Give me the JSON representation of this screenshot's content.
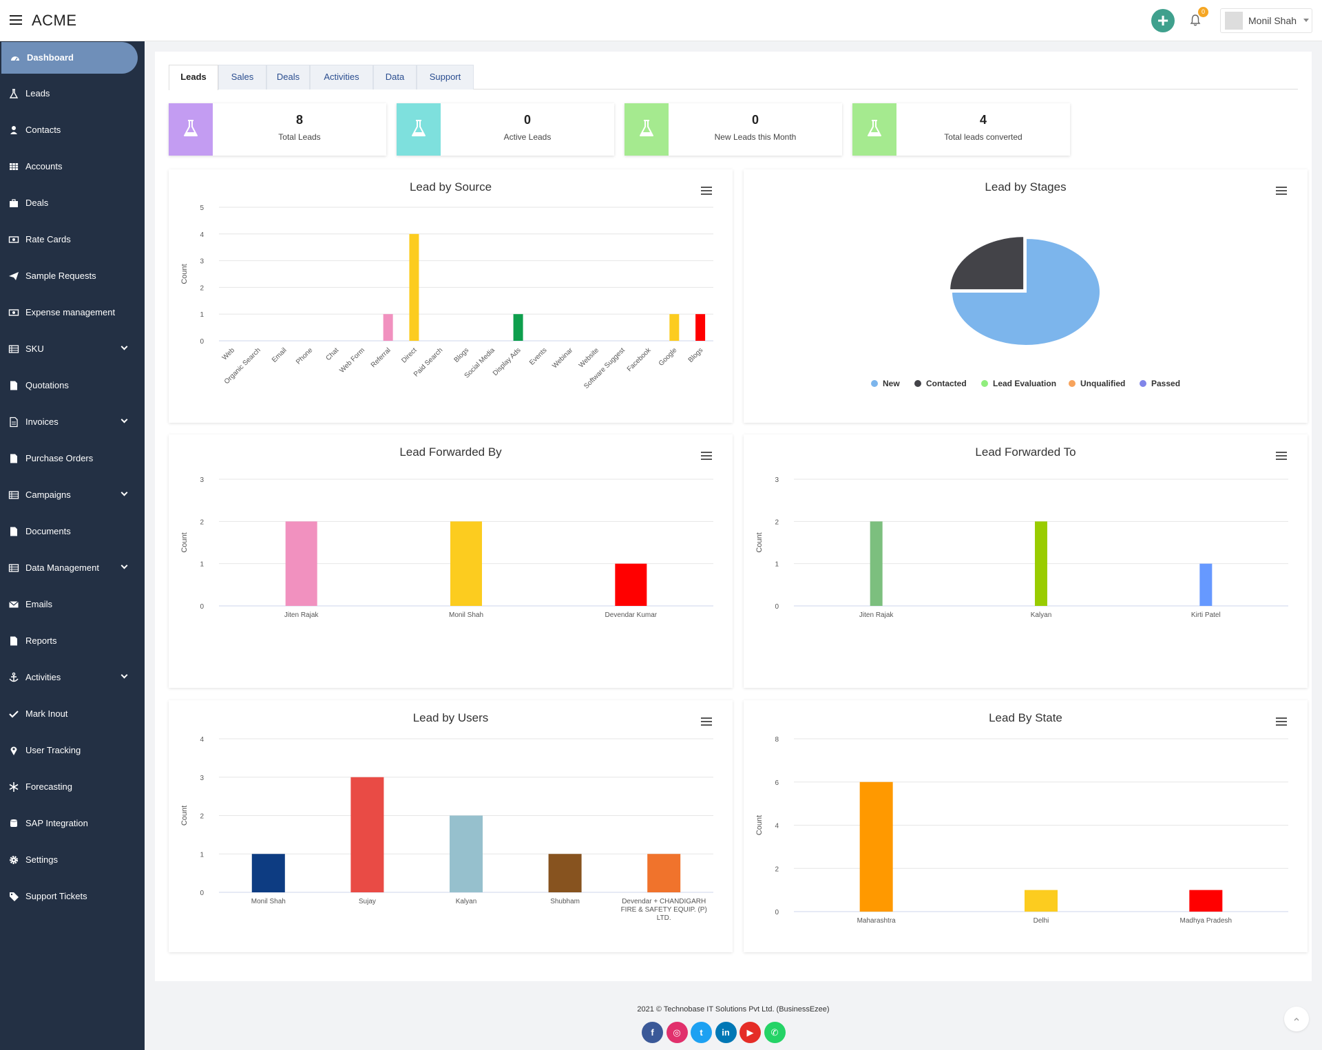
{
  "app": {
    "title": "ACME"
  },
  "user": {
    "name": "Monil Shah",
    "notifications": "0"
  },
  "sidebar": {
    "items": [
      {
        "label": "Dashboard",
        "icon": "dashboard-icon",
        "active": true
      },
      {
        "label": "Leads",
        "icon": "flask-icon"
      },
      {
        "label": "Contacts",
        "icon": "user-icon"
      },
      {
        "label": "Accounts",
        "icon": "grid-icon"
      },
      {
        "label": "Deals",
        "icon": "briefcase-icon"
      },
      {
        "label": "Rate Cards",
        "icon": "money-icon"
      },
      {
        "label": "Sample Requests",
        "icon": "send-icon"
      },
      {
        "label": "Expense management",
        "icon": "money-icon"
      },
      {
        "label": "SKU",
        "icon": "list-icon",
        "expandable": true
      },
      {
        "label": "Quotations",
        "icon": "file-icon"
      },
      {
        "label": "Invoices",
        "icon": "file-text-icon",
        "expandable": true
      },
      {
        "label": "Purchase Orders",
        "icon": "file-icon"
      },
      {
        "label": "Campaigns",
        "icon": "list-icon",
        "expandable": true
      },
      {
        "label": "Documents",
        "icon": "file-icon"
      },
      {
        "label": "Data Management",
        "icon": "list-icon",
        "expandable": true
      },
      {
        "label": "Emails",
        "icon": "envelope-icon"
      },
      {
        "label": "Reports",
        "icon": "file-icon"
      },
      {
        "label": "Activities",
        "icon": "anchor-icon",
        "expandable": true
      },
      {
        "label": "Mark Inout",
        "icon": "check-icon"
      },
      {
        "label": "User Tracking",
        "icon": "map-marker-icon"
      },
      {
        "label": "Forecasting",
        "icon": "snowflake-icon"
      },
      {
        "label": "SAP Integration",
        "icon": "database-icon"
      },
      {
        "label": "Settings",
        "icon": "gear-icon"
      },
      {
        "label": "Support Tickets",
        "icon": "tag-icon"
      }
    ]
  },
  "tabs": [
    "Leads",
    "Sales",
    "Deals",
    "Activities",
    "Data",
    "Support"
  ],
  "stats": [
    {
      "value": "8",
      "label": "Total Leads",
      "color": "#c39cf2"
    },
    {
      "value": "0",
      "label": "Active Leads",
      "color": "#7ee0dd"
    },
    {
      "value": "0",
      "label": "New Leads this Month",
      "color": "#a5ea8f"
    },
    {
      "value": "4",
      "label": "Total leads converted",
      "color": "#a5ea8f"
    }
  ],
  "chart_data": [
    {
      "type": "bar",
      "title": "Lead by Source",
      "ylabel": "Count",
      "ylim": [
        0,
        5
      ],
      "yticks": [
        0,
        1,
        2,
        3,
        4,
        5
      ],
      "categories": [
        "Web",
        "Organic Search",
        "Email",
        "Phone",
        "Chat",
        "Web Form",
        "Referral",
        "Direct",
        "Paid Search",
        "Blogs",
        "Social Media",
        "Display Ads",
        "Events",
        "Webinar",
        "Website",
        "Software Suggest",
        "Facebook",
        "Google",
        "Blogs"
      ],
      "values": [
        0,
        0,
        0,
        0,
        0,
        0,
        1,
        4,
        0,
        0,
        0,
        1,
        0,
        0,
        0,
        0,
        0,
        1,
        1
      ],
      "colors": [
        "#7cb5ec",
        "#7cb5ec",
        "#7cb5ec",
        "#7cb5ec",
        "#7cb5ec",
        "#7cb5ec",
        "#f191bf",
        "#fccc1f",
        "#7cb5ec",
        "#7cb5ec",
        "#7cb5ec",
        "#0e9f4d",
        "#7cb5ec",
        "#7cb5ec",
        "#7cb5ec",
        "#7cb5ec",
        "#7cb5ec",
        "#fccc1f",
        "#ff0000"
      ]
    },
    {
      "type": "pie",
      "title": "Lead by Stages",
      "categories": [
        "New",
        "Contacted",
        "Lead Evaluation",
        "Unqualified",
        "Passed"
      ],
      "values": [
        6,
        2,
        0,
        0,
        0
      ],
      "colors": [
        "#7cb5ec",
        "#434348",
        "#90ed7d",
        "#f7a35c",
        "#8085e9"
      ],
      "legend": "bottom"
    },
    {
      "type": "bar",
      "title": "Lead Forwarded By",
      "ylabel": "Count",
      "ylim": [
        0,
        3
      ],
      "yticks": [
        0,
        1,
        2,
        3
      ],
      "categories": [
        "Jiten Rajak",
        "Monil Shah",
        "Devendar Kumar"
      ],
      "values": [
        2,
        2,
        1
      ],
      "colors": [
        "#f191bf",
        "#fccc1f",
        "#ff0000"
      ]
    },
    {
      "type": "bar",
      "title": "Lead Forwarded To",
      "ylabel": "Count",
      "ylim": [
        0,
        3
      ],
      "yticks": [
        0,
        1,
        2,
        3
      ],
      "categories": [
        "Jiten Rajak",
        "Kalyan",
        "Kirti Patel"
      ],
      "values": [
        2,
        2,
        1
      ],
      "colors": [
        "#7cbf7e",
        "#99cc00",
        "#6699ff"
      ]
    },
    {
      "type": "bar",
      "title": "Lead by Users",
      "ylabel": "Count",
      "ylim": [
        0,
        4
      ],
      "yticks": [
        0,
        1,
        2,
        3,
        4
      ],
      "categories": [
        "Monil Shah",
        "Sujay",
        "Kalyan",
        "Shubham",
        "Devendar + CHANDIGARH FIRE & SAFETY EQUIP. (P) LTD."
      ],
      "values": [
        1,
        3,
        2,
        1,
        1
      ],
      "colors": [
        "#0d3c82",
        "#e94b45",
        "#96c0cd",
        "#87531f",
        "#f0732c"
      ]
    },
    {
      "type": "bar",
      "title": "Lead By State",
      "ylabel": "Count",
      "ylim": [
        0,
        8
      ],
      "yticks": [
        0,
        2,
        4,
        6,
        8
      ],
      "categories": [
        "Maharashtra",
        "Delhi",
        "Madhya Pradesh"
      ],
      "values": [
        6,
        1,
        1
      ],
      "colors": [
        "#ff9900",
        "#fccc1f",
        "#ff0000"
      ]
    }
  ],
  "footer": {
    "copyright": "2021 © Technobase IT Solutions Pvt Ltd. (BusinessEzee)",
    "social": [
      {
        "icon": "facebook-icon",
        "color": "#3b5998",
        "glyph": "f"
      },
      {
        "icon": "instagram-icon",
        "color": "#e1306c",
        "glyph": "◎"
      },
      {
        "icon": "twitter-icon",
        "color": "#1da1f2",
        "glyph": "t"
      },
      {
        "icon": "linkedin-icon",
        "color": "#0077b5",
        "glyph": "in"
      },
      {
        "icon": "youtube-icon",
        "color": "#e52d27",
        "glyph": "▶"
      },
      {
        "icon": "whatsapp-icon",
        "color": "#25d366",
        "glyph": "✆"
      }
    ]
  }
}
